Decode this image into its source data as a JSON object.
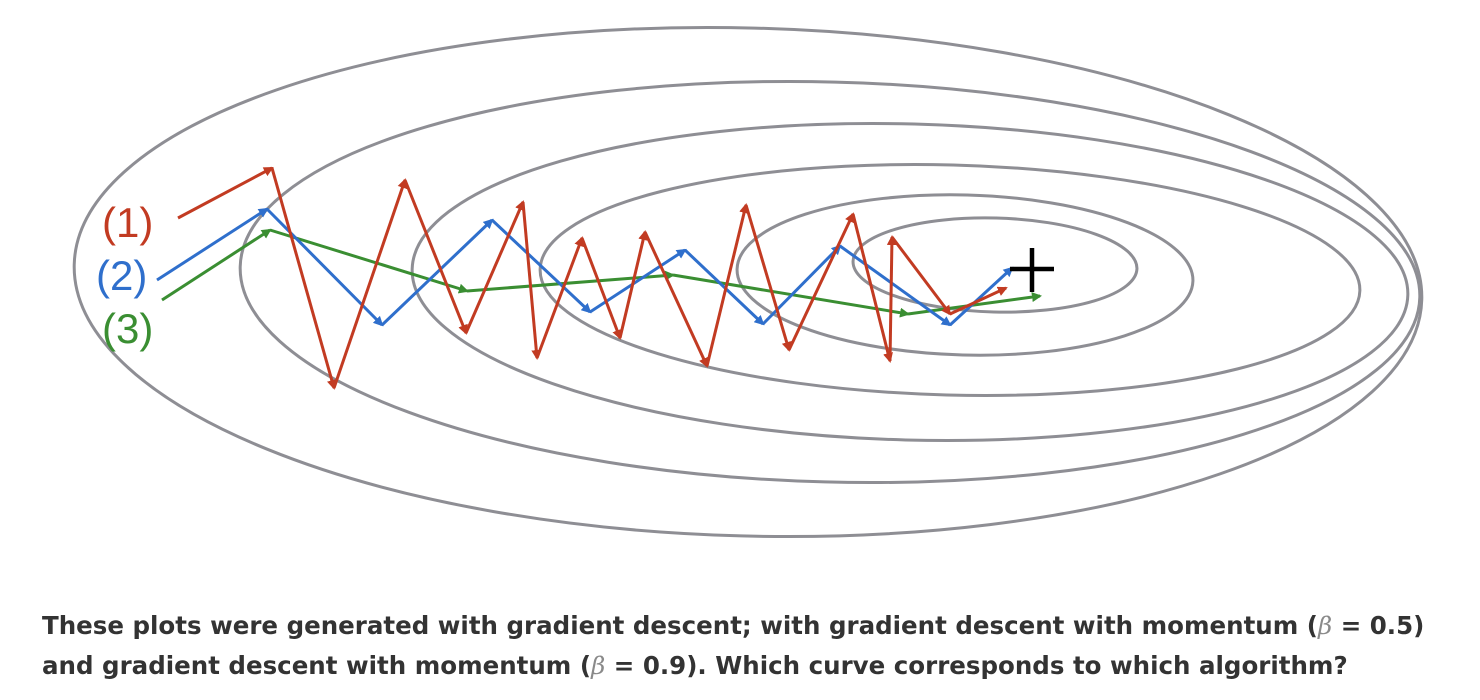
{
  "colors": {
    "contour": "#8e8e94",
    "path1": "#c23b22",
    "path2": "#2f6fcc",
    "path3": "#3a8e32",
    "minimum": "#000000",
    "caption": "#333333"
  },
  "labels": {
    "path1": "(1)",
    "path2": "(2)",
    "path3": "(3)"
  },
  "caption": {
    "part1": "These plots were generated with gradient descent; with gradient descent with momentum (",
    "beta_symbol": "β",
    "part2": " = 0.5) and gradient descent with momentum (",
    "part3": " = 0.9). Which curve corresponds to which algorithm?"
  },
  "icons": {
    "minimum": "plus-icon"
  }
}
